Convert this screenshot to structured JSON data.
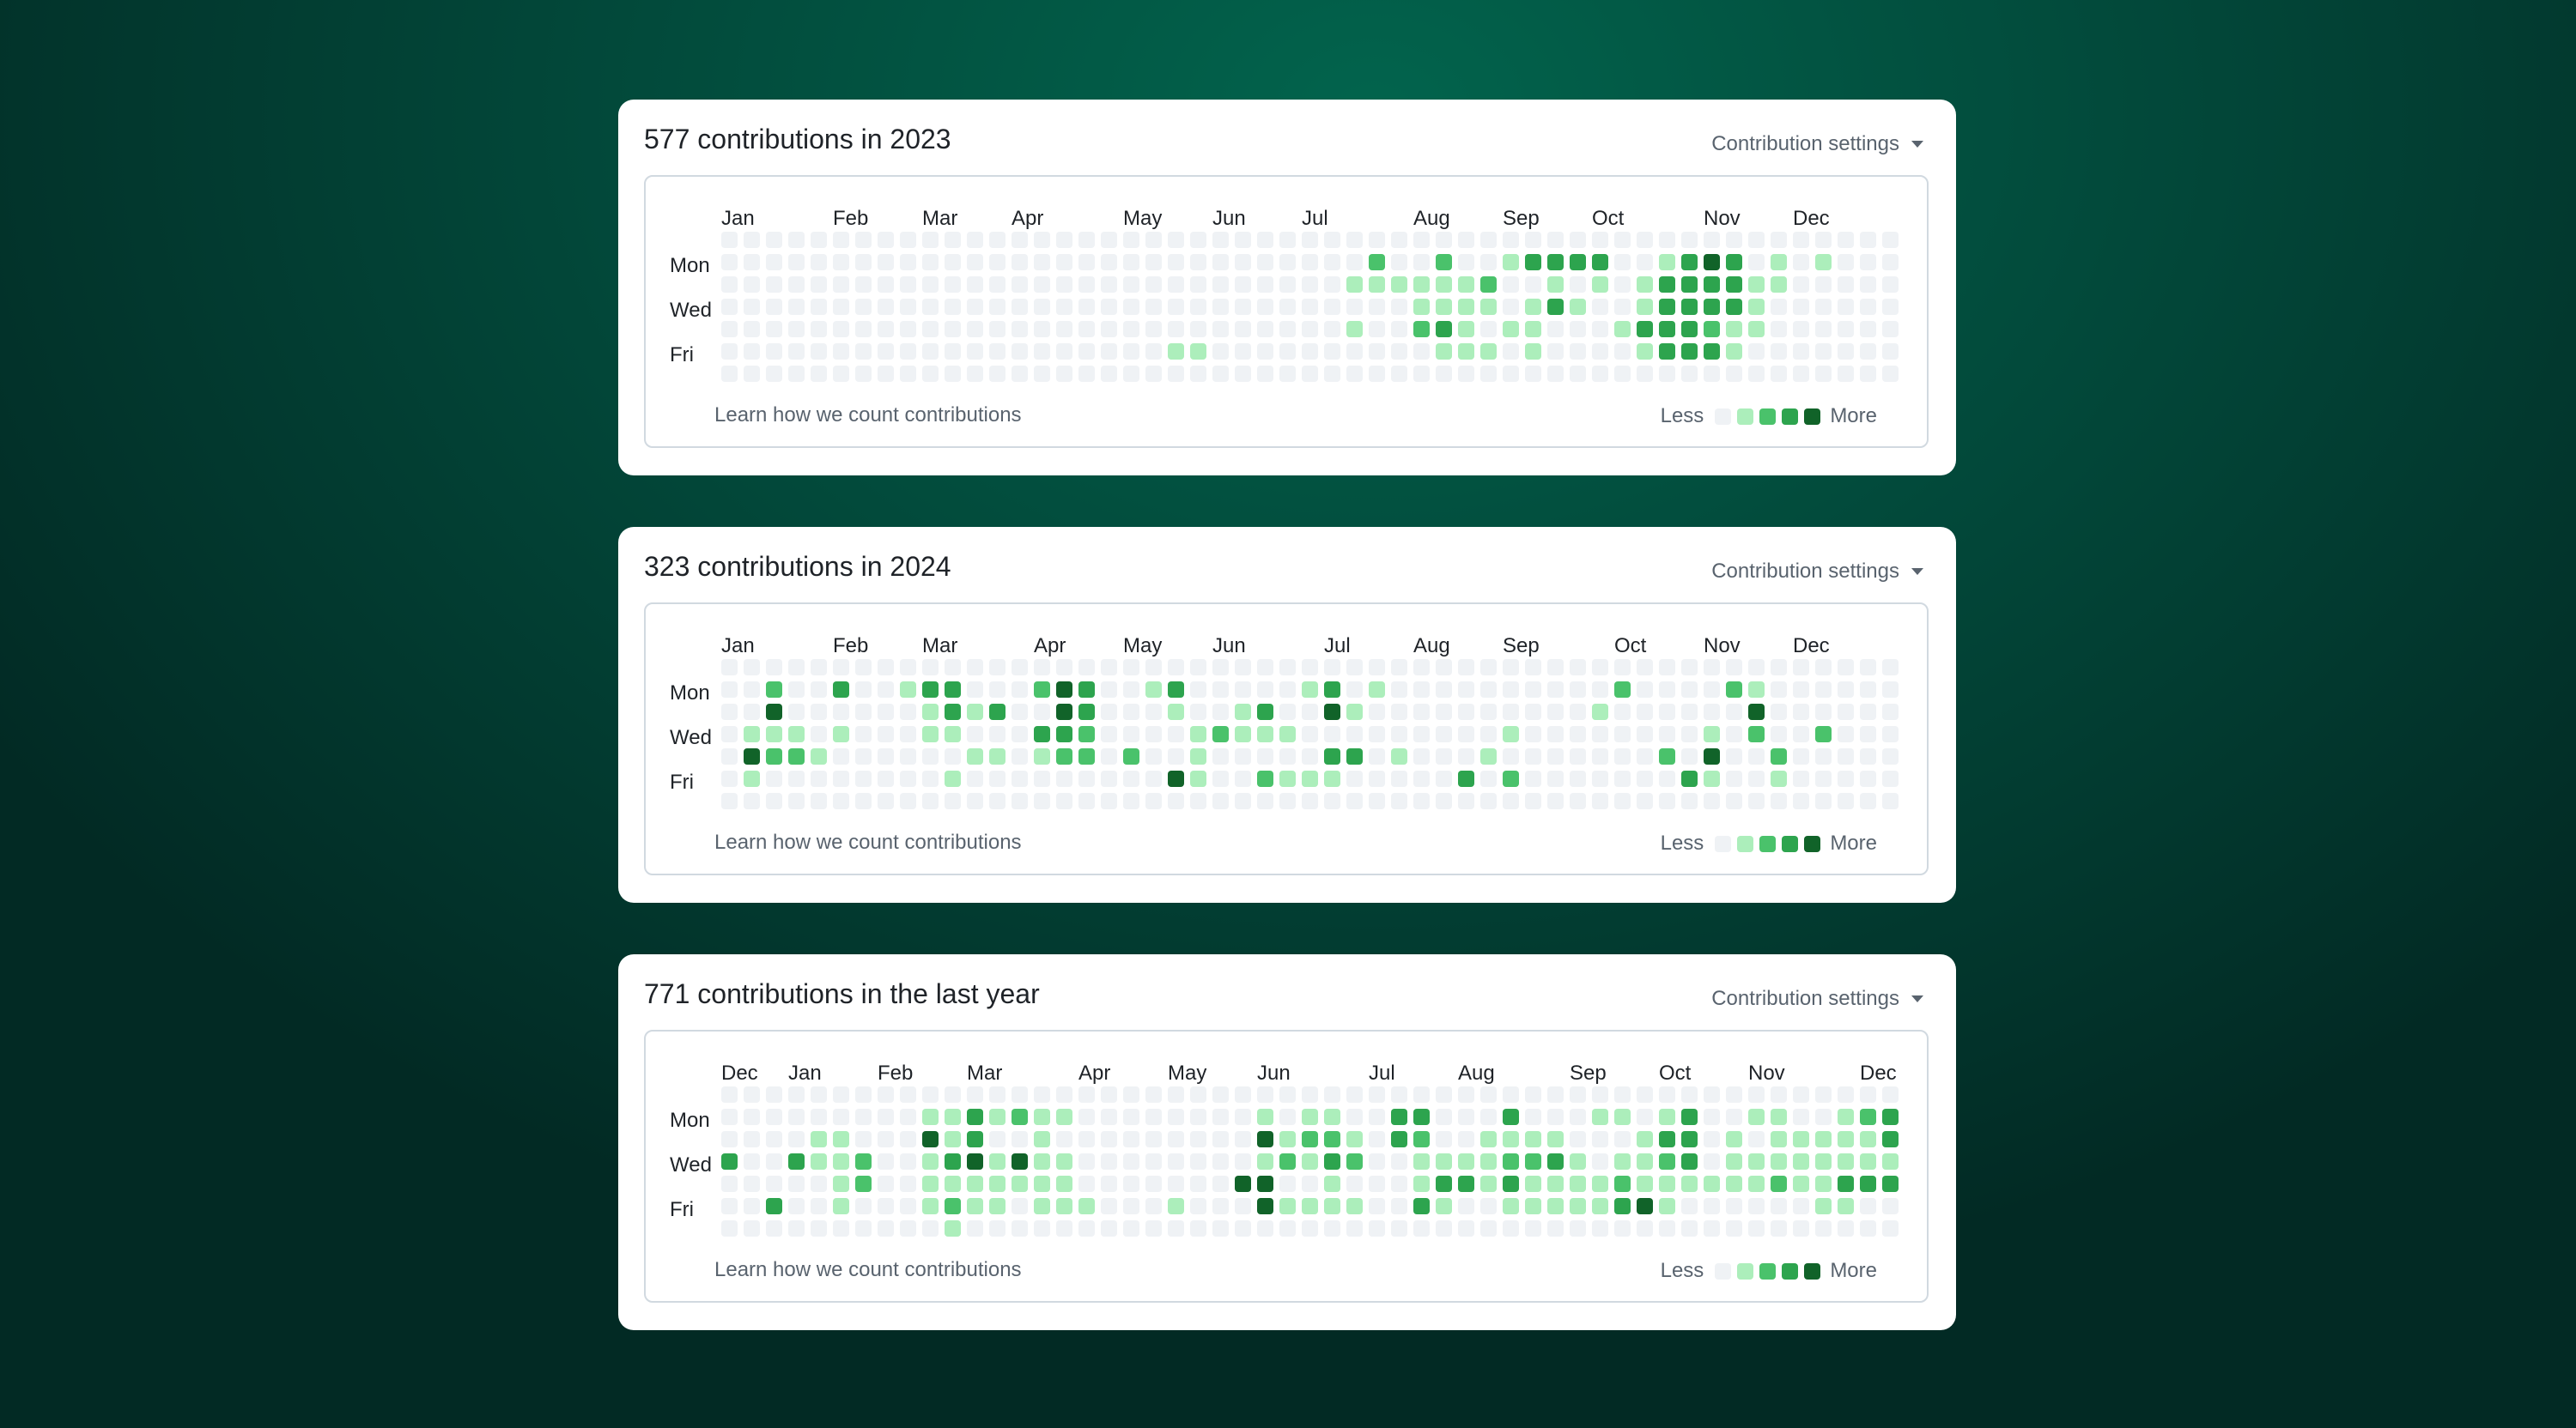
{
  "palette": [
    "#eff2f5",
    "#aceebb",
    "#4ac26b",
    "#2da44e",
    "#116329"
  ],
  "legend": {
    "less_label": "Less",
    "more_label": "More"
  },
  "weekday_labels": [
    "Mon",
    "Wed",
    "Fri"
  ],
  "link_label": "Learn how we count contributions",
  "settings_label": "Contribution settings",
  "panels": [
    {
      "id": "2023",
      "title": "577 contributions in 2023",
      "months": [
        {
          "label": "Jan",
          "week": 0
        },
        {
          "label": "Feb",
          "week": 5
        },
        {
          "label": "Mar",
          "week": 9
        },
        {
          "label": "Apr",
          "week": 13
        },
        {
          "label": "May",
          "week": 18
        },
        {
          "label": "Jun",
          "week": 22
        },
        {
          "label": "Jul",
          "week": 26
        },
        {
          "label": "Aug",
          "week": 31
        },
        {
          "label": "Sep",
          "week": 35
        },
        {
          "label": "Oct",
          "week": 39
        },
        {
          "label": "Nov",
          "week": 44
        },
        {
          "label": "Dec",
          "week": 48
        }
      ],
      "grid": [
        "00000000000000000000000000000000000000000000000000000",
        "00000000000000000000000000000200200133330013430101000",
        "00000000000000000000000000001111112001010133331100000",
        "00000000000000000000000000000001111013100133331000000",
        "00000000000000000000000000001002310110001333211000000",
        "00000000000000000000110000000000111010000133310000000",
        "00000000000000000000000000000000000000000000000000000"
      ]
    },
    {
      "id": "2024",
      "title": "323 contributions in 2024",
      "months": [
        {
          "label": "Jan",
          "week": 0
        },
        {
          "label": "Feb",
          "week": 5
        },
        {
          "label": "Mar",
          "week": 9
        },
        {
          "label": "Apr",
          "week": 14
        },
        {
          "label": "May",
          "week": 18
        },
        {
          "label": "Jun",
          "week": 22
        },
        {
          "label": "Jul",
          "week": 27
        },
        {
          "label": "Aug",
          "week": 31
        },
        {
          "label": "Sep",
          "week": 35
        },
        {
          "label": "Oct",
          "week": 40
        },
        {
          "label": "Nov",
          "week": 44
        },
        {
          "label": "Dec",
          "week": 48
        }
      ],
      "grid": [
        "00000000000000000000000000000000000000000000000000000",
        "00200300133000243001300000130100000000002000021000000",
        "00400000013130043000100130041000000000010000004000000",
        "01110100011000332000012111000000000100000000102002000",
        "04221000000110122020010000033010001000000020400200000",
        "01000000001000000000410021110000030200000003100100000",
        "00000000000000000000000000000000000000000000000000000"
      ]
    },
    {
      "id": "last-year",
      "title": "771 contributions in the last year",
      "months": [
        {
          "label": "Dec",
          "week": 0
        },
        {
          "label": "Jan",
          "week": 3
        },
        {
          "label": "Feb",
          "week": 7
        },
        {
          "label": "Mar",
          "week": 11
        },
        {
          "label": "Apr",
          "week": 16
        },
        {
          "label": "May",
          "week": 20
        },
        {
          "label": "Jun",
          "week": 24
        },
        {
          "label": "Jul",
          "week": 29
        },
        {
          "label": "Aug",
          "week": 33
        },
        {
          "label": "Sep",
          "week": 38
        },
        {
          "label": "Oct",
          "week": 42
        },
        {
          "label": "Nov",
          "week": 46
        },
        {
          "label": "Dec",
          "week": 51
        }
      ],
      "grid": [
        "00000000000000000000000000000000000000000000000000000",
        "00000000011312110000000010110033000300011013001100123",
        "00001100041300100000000041221032001111000133010111113",
        "30031120013414110000000012132001111223101123011111111",
        "00000120011111110000000440010001331311112111111211333",
        "00300100012110111000100041111003100111113410000001100",
        "00000000001000000000000000000000000000000000000000000"
      ]
    }
  ]
}
